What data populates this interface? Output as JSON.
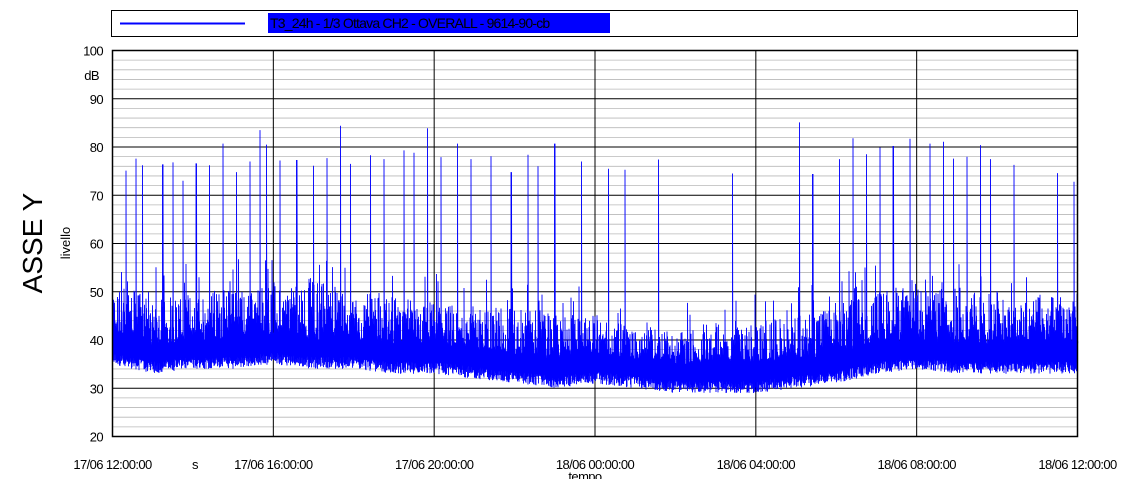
{
  "chart_data": {
    "type": "line",
    "title": "",
    "legend": {
      "position": "top",
      "entries": [
        "T3_24h - 1/3 Ottava CH2 - OVERALL - 9614-90-cb"
      ]
    },
    "axis_title_left": "ASSE Y",
    "ylabel": "livello",
    "yunit": "dB",
    "xlabel": "tempo",
    "xunit": "s",
    "ylim": [
      20,
      100
    ],
    "y_major_ticks": [
      20,
      30,
      40,
      50,
      60,
      70,
      80,
      90,
      100
    ],
    "y_minor_step": 2,
    "grid": true,
    "xlim": [
      "17/06 12:00:00",
      "18/06 12:00:00"
    ],
    "x_tick_labels": [
      "17/06 12:00:00",
      "17/06 16:00:00",
      "17/06 20:00:00",
      "18/06 00:00:00",
      "18/06 04:00:00",
      "18/06 08:00:00",
      "18/06 12:00:00"
    ],
    "series": [
      {
        "name": "T3_24h - 1/3 Ottava CH2 - OVERALL - 9614-90-cb",
        "color": "#0000ff",
        "x": [
          "17/06 12:00",
          "17/06 13:00",
          "17/06 14:00",
          "17/06 15:00",
          "17/06 16:00",
          "17/06 17:00",
          "17/06 18:00",
          "17/06 19:00",
          "17/06 20:00",
          "17/06 21:00",
          "17/06 22:00",
          "17/06 23:00",
          "18/06 00:00",
          "18/06 01:00",
          "18/06 02:00",
          "18/06 03:00",
          "18/06 04:00",
          "18/06 05:00",
          "18/06 06:00",
          "18/06 07:00",
          "18/06 08:00",
          "18/06 09:00",
          "18/06 10:00",
          "18/06 11:00",
          "18/06 12:00"
        ],
        "min": [
          35,
          33,
          34,
          34,
          35,
          34,
          34,
          33,
          33,
          32,
          31,
          30,
          31,
          30,
          29,
          29,
          29,
          30,
          31,
          33,
          34,
          33,
          33,
          33,
          33
        ],
        "max": [
          51,
          50,
          50,
          51,
          52,
          53,
          50,
          49,
          48,
          47,
          47,
          46,
          45,
          43,
          42,
          44,
          44,
          45,
          48,
          50,
          52,
          51,
          50,
          49,
          50
        ],
        "peaks": [
          [
            "17/06 12:20",
            75.1
          ],
          [
            "17/06 12:35",
            77.6
          ],
          [
            "17/06 12:45",
            76.2
          ],
          [
            "17/06 13:15",
            76.4
          ],
          [
            "17/06 13:30",
            76.8
          ],
          [
            "17/06 13:45",
            73.0
          ],
          [
            "17/06 14:05",
            76.6
          ],
          [
            "17/06 14:25",
            76.2
          ],
          [
            "17/06 14:45",
            80.7
          ],
          [
            "17/06 15:05",
            74.8
          ],
          [
            "17/06 15:25",
            77.0
          ],
          [
            "17/06 15:40",
            83.5
          ],
          [
            "17/06 15:50",
            80.5
          ],
          [
            "17/06 16:10",
            77.2
          ],
          [
            "17/06 16:35",
            77.3
          ],
          [
            "17/06 17:00",
            76.1
          ],
          [
            "17/06 17:20",
            77.7
          ],
          [
            "17/06 17:40",
            84.4
          ],
          [
            "17/06 17:55",
            76.5
          ],
          [
            "17/06 18:25",
            78.3
          ],
          [
            "17/06 18:45",
            77.5
          ],
          [
            "17/06 19:15",
            79.3
          ],
          [
            "17/06 19:30",
            78.8
          ],
          [
            "17/06 19:50",
            83.9
          ],
          [
            "17/06 20:10",
            77.9
          ],
          [
            "17/06 20:35",
            80.7
          ],
          [
            "17/06 20:55",
            77.5
          ],
          [
            "17/06 21:25",
            78.1
          ],
          [
            "17/06 21:55",
            74.8
          ],
          [
            "17/06 22:20",
            78.4
          ],
          [
            "17/06 22:35",
            76.0
          ],
          [
            "17/06 23:00",
            80.7
          ],
          [
            "17/06 23:40",
            77.0
          ],
          [
            "18/06 00:20",
            75.5
          ],
          [
            "18/06 00:45",
            75.3
          ],
          [
            "18/06 01:35",
            77.4
          ],
          [
            "18/06 03:25",
            74.5
          ],
          [
            "18/06 05:05",
            85.1
          ],
          [
            "18/06 05:25",
            74.4
          ],
          [
            "18/06 06:05",
            77.5
          ],
          [
            "18/06 06:25",
            81.8
          ],
          [
            "18/06 06:45",
            78.5
          ],
          [
            "18/06 07:05",
            79.9
          ],
          [
            "18/06 07:25",
            80.2
          ],
          [
            "18/06 07:50",
            81.7
          ],
          [
            "18/06 08:20",
            80.7
          ],
          [
            "18/06 08:40",
            81.1
          ],
          [
            "18/06 08:55",
            77.6
          ],
          [
            "18/06 09:15",
            78.0
          ],
          [
            "18/06 09:35",
            80.4
          ],
          [
            "18/06 09:50",
            77.5
          ],
          [
            "18/06 10:25",
            76.3
          ],
          [
            "18/06 11:30",
            74.6
          ],
          [
            "18/06 11:55",
            72.8
          ]
        ]
      }
    ]
  }
}
